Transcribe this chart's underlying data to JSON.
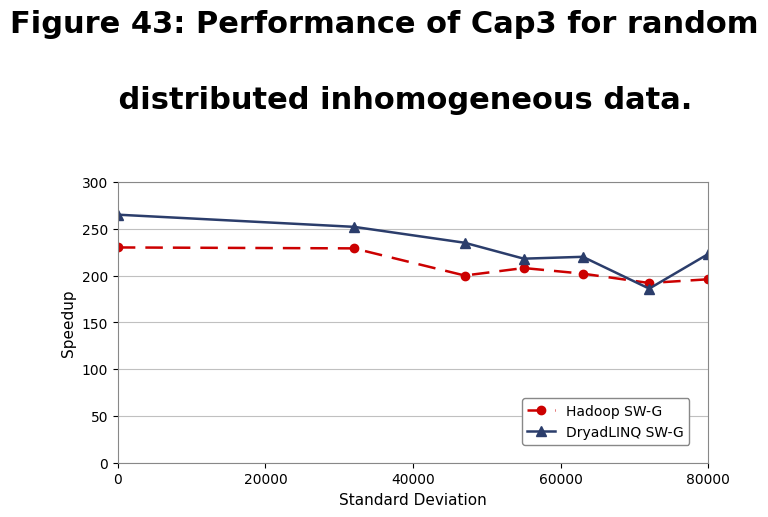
{
  "title_line1": "Figure 43: Performance of Cap3 for random",
  "title_line2": "    distributed inhomogeneous data.",
  "xlabel": "Standard Deviation",
  "ylabel": "Speedup",
  "xlim": [
    0,
    80000
  ],
  "ylim": [
    0,
    300
  ],
  "yticks": [
    0,
    50,
    100,
    150,
    200,
    250,
    300
  ],
  "xticks": [
    0,
    20000,
    40000,
    60000,
    80000
  ],
  "hadoop": {
    "x": [
      0,
      32000,
      47000,
      55000,
      63000,
      72000,
      80000
    ],
    "y": [
      230,
      229,
      200,
      208,
      202,
      192,
      196
    ],
    "color": "#cc0000",
    "label": "Hadoop SW-G",
    "linestyle": "dashed",
    "marker": "o"
  },
  "dryad": {
    "x": [
      0,
      32000,
      47000,
      55000,
      63000,
      72000,
      80000
    ],
    "y": [
      265,
      252,
      235,
      218,
      220,
      186,
      223
    ],
    "color": "#2b3d6b",
    "label": "DryadLINQ SW-G",
    "linestyle": "solid",
    "marker": "^"
  },
  "background_color": "#ffffff",
  "title_fontsize": 22,
  "axis_label_fontsize": 11,
  "tick_fontsize": 10,
  "legend_fontsize": 10
}
